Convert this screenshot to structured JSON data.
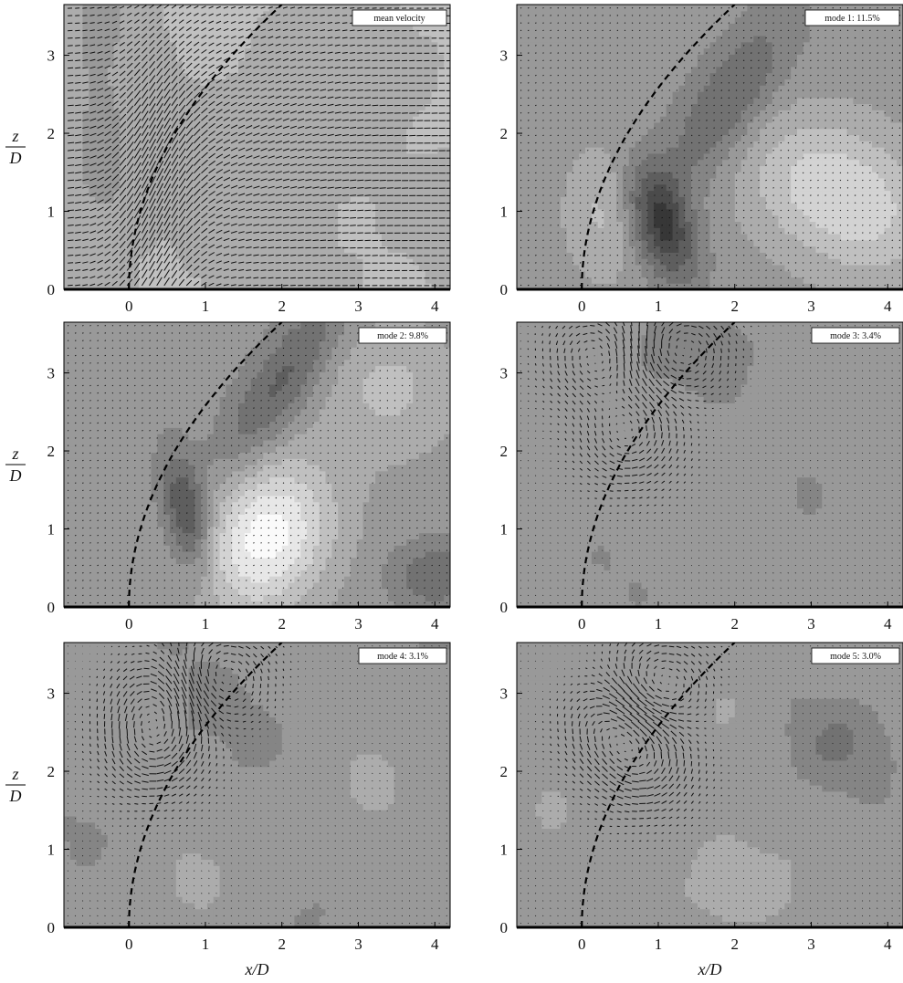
{
  "figure": {
    "ylabel_top": "z",
    "ylabel_bottom": "D",
    "xlabel": "x/D"
  },
  "chart_data": [
    {
      "type": "vector-field",
      "title": "mean velocity",
      "xlim": [
        -0.85,
        4.2
      ],
      "ylim": [
        0,
        3.65
      ],
      "xticks": [
        0,
        1,
        2,
        3,
        4
      ],
      "yticks": [
        0,
        1,
        2,
        3
      ],
      "field": "mean",
      "trajectory": true
    },
    {
      "type": "contour",
      "title": "mode 1: 11.5%",
      "xlim": [
        -0.85,
        4.2
      ],
      "ylim": [
        0,
        3.65
      ],
      "xticks": [
        0,
        1,
        2,
        3,
        4
      ],
      "yticks": [
        0,
        1,
        2,
        3
      ],
      "field": "mode1",
      "trajectory": true
    },
    {
      "type": "contour",
      "title": "mode 2: 9.8%",
      "xlim": [
        -0.85,
        4.2
      ],
      "ylim": [
        0,
        3.65
      ],
      "xticks": [
        0,
        1,
        2,
        3,
        4
      ],
      "yticks": [
        0,
        1,
        2,
        3
      ],
      "field": "mode2",
      "trajectory": true
    },
    {
      "type": "vector-field",
      "title": "mode 3: 3.4%",
      "xlim": [
        -0.85,
        4.2
      ],
      "ylim": [
        0,
        3.65
      ],
      "xticks": [
        0,
        1,
        2,
        3,
        4
      ],
      "yticks": [
        0,
        1,
        2,
        3
      ],
      "field": "mode3",
      "trajectory": true
    },
    {
      "type": "vector-field",
      "title": "mode 4: 3.1%",
      "xlim": [
        -0.85,
        4.2
      ],
      "ylim": [
        0,
        3.65
      ],
      "xticks": [
        0,
        1,
        2,
        3,
        4
      ],
      "yticks": [
        0,
        1,
        2,
        3
      ],
      "field": "mode4",
      "trajectory": true
    },
    {
      "type": "vector-field",
      "title": "mode 5: 3.0%",
      "xlim": [
        -0.85,
        4.2
      ],
      "ylim": [
        0,
        3.65
      ],
      "xticks": [
        0,
        1,
        2,
        3,
        4
      ],
      "yticks": [
        0,
        1,
        2,
        3
      ],
      "field": "mode5",
      "trajectory": true
    }
  ]
}
